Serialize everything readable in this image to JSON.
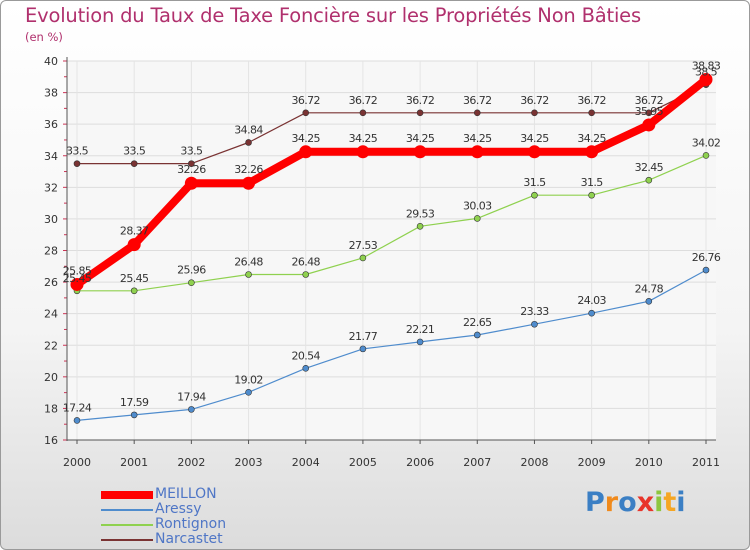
{
  "chart_data": {
    "type": "line",
    "title": "Evolution du Taux de Taxe Foncière sur les Propriétés Non Bâties",
    "unit_label": "(en %)",
    "categories": [
      "2000",
      "2001",
      "2002",
      "2003",
      "2004",
      "2005",
      "2006",
      "2007",
      "2008",
      "2009",
      "2010",
      "2011"
    ],
    "ylim": [
      16,
      40
    ],
    "yticks": [
      "16",
      "18",
      "20",
      "22",
      "24",
      "26",
      "28",
      "30",
      "32",
      "34",
      "36",
      "38",
      "40"
    ],
    "grid": true,
    "legend_position": "bottom-left",
    "series": [
      {
        "name": "MEILLON",
        "color": "#ff0000",
        "values": [
          25.85,
          28.37,
          32.26,
          32.26,
          34.25,
          34.25,
          34.25,
          34.25,
          34.25,
          34.25,
          35.95,
          38.83
        ],
        "labels": [
          "25.85",
          "28.37",
          "32.26",
          "32.26",
          "34.25",
          "34.25",
          "34.25",
          "34.25",
          "34.25",
          "34.25",
          "35.95",
          "38.83"
        ]
      },
      {
        "name": "Aressy",
        "color": "#4f8ccd",
        "values": [
          17.24,
          17.59,
          17.94,
          19.02,
          20.54,
          21.77,
          22.21,
          22.65,
          23.33,
          24.03,
          24.78,
          26.76
        ],
        "labels": [
          "17.24",
          "17.59",
          "17.94",
          "19.02",
          "20.54",
          "21.77",
          "22.21",
          "22.65",
          "23.33",
          "24.03",
          "24.78",
          "26.76"
        ]
      },
      {
        "name": "Rontignon",
        "color": "#8fd14f",
        "values": [
          25.45,
          25.45,
          25.96,
          26.48,
          26.48,
          27.53,
          29.53,
          30.03,
          31.5,
          31.5,
          32.45,
          34.02
        ],
        "labels": [
          "25.45",
          "25.45",
          "25.96",
          "26.48",
          "26.48",
          "27.53",
          "29.53",
          "30.03",
          "31.5",
          "31.5",
          "32.45",
          "34.02"
        ]
      },
      {
        "name": "Narcastet",
        "color": "#7a3333",
        "values": [
          33.5,
          33.5,
          33.5,
          34.84,
          36.72,
          36.72,
          36.72,
          36.72,
          36.72,
          36.72,
          36.72,
          38.5
        ],
        "labels": [
          "33.5",
          "33.5",
          "33.5",
          "34.84",
          "36.72",
          "36.72",
          "36.72",
          "36.72",
          "36.72",
          "36.72",
          "36.72",
          "38.5"
        ]
      }
    ]
  },
  "logo": {
    "letters": [
      "P",
      "r",
      "o",
      "x",
      "i",
      "t",
      "i"
    ],
    "colors": [
      "#3b7fc4",
      "#f08a1c",
      "#3b7fc4",
      "#e8352b",
      "#8dc63f",
      "#f5a623",
      "#3b7fc4"
    ]
  }
}
